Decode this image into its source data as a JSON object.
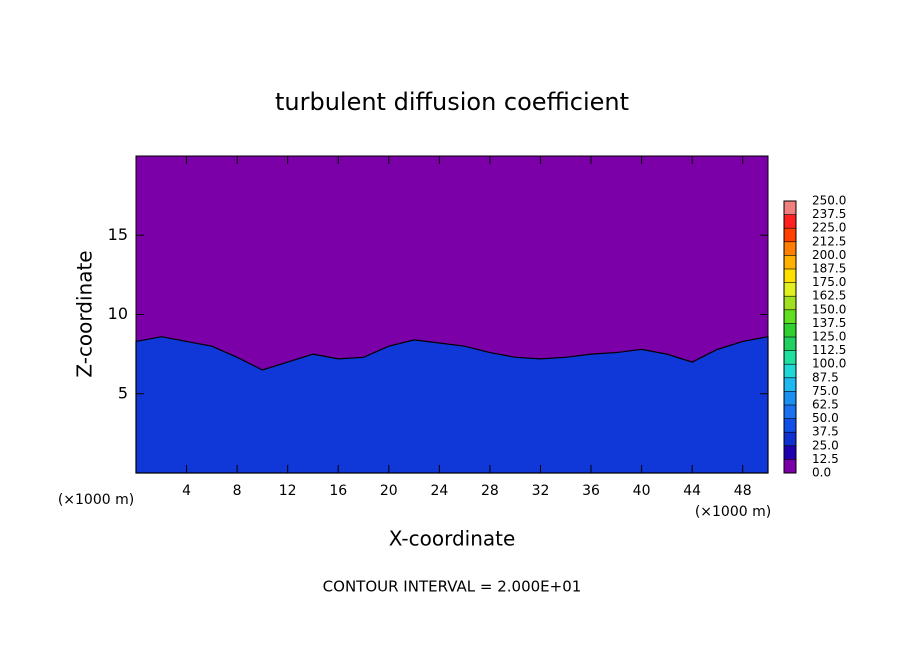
{
  "chart_data": {
    "type": "contour",
    "title": "turbulent diffusion coefficient",
    "x_label": "X-coordinate",
    "y_label": "Z-coordinate",
    "unit_labels": [
      "(×1000 m)",
      "(×1000 m)"
    ],
    "annotation": "CONTOUR INTERVAL = 2.000E+01",
    "xlim": [
      0,
      50
    ],
    "ylim": [
      0,
      20
    ],
    "xticks": [
      4,
      8,
      12,
      16,
      20,
      24,
      28,
      32,
      36,
      40,
      44,
      48
    ],
    "yticks": [
      5,
      10,
      15
    ],
    "background_color": "#7b00a8",
    "boundary_layer": {
      "x": [
        0,
        2,
        4,
        6,
        8,
        10,
        12,
        14,
        16,
        18,
        20,
        22,
        24,
        26,
        28,
        30,
        32,
        34,
        36,
        38,
        40,
        42,
        44,
        46,
        48,
        50
      ],
      "values": [
        8.3,
        8.6,
        8.3,
        8.0,
        7.3,
        6.5,
        7.0,
        7.5,
        7.2,
        7.3,
        8.0,
        8.4,
        8.2,
        8.0,
        7.6,
        7.3,
        7.2,
        7.3,
        7.5,
        7.6,
        7.8,
        7.5,
        7.0,
        7.8,
        8.3,
        8.6
      ],
      "color": "#1038d8"
    },
    "colorbar": {
      "levels": [
        {
          "value": 0,
          "label": "0.0"
        },
        12.5,
        {
          "value": 25,
          "label": "25.0"
        },
        37.5,
        {
          "value": 50,
          "label": "50.0"
        },
        62.5,
        {
          "value": 75,
          "label": "75.0"
        },
        87.5,
        {
          "value": 100,
          "label": "100.0"
        },
        112.5,
        {
          "value": 125,
          "label": "125.0"
        },
        137.5,
        {
          "value": 150,
          "label": "150.0"
        },
        162.5,
        {
          "value": 175,
          "label": "175.0"
        },
        187.5,
        {
          "value": 200,
          "label": "200.0"
        },
        212.5,
        {
          "value": 225,
          "label": "225.0"
        },
        237.5,
        {
          "value": 250,
          "label": "250.0"
        }
      ],
      "colors": [
        "#7b00a8",
        "#2000b0",
        "#1030d0",
        "#1050e8",
        "#1a70f0",
        "#1a90f0",
        "#20b8f0",
        "#20d8d8",
        "#20e0a0",
        "#20d060",
        "#30d030",
        "#60e020",
        "#a0e020",
        "#e0f020",
        "#ffe000",
        "#ffb000",
        "#ff8000",
        "#ff4000",
        "#ff2020",
        "#f08080"
      ]
    }
  }
}
